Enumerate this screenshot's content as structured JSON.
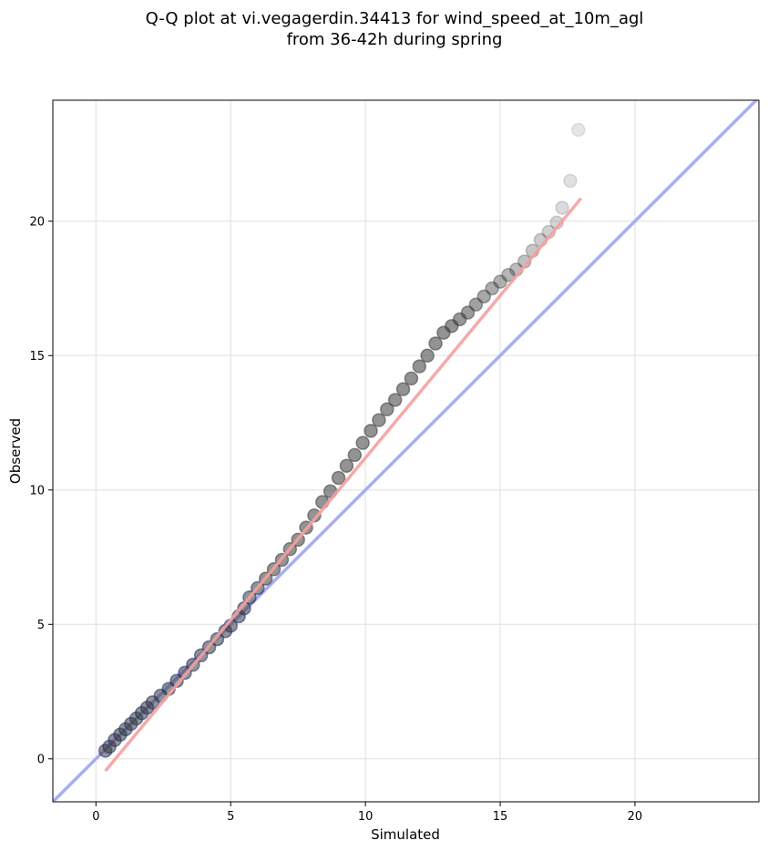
{
  "chart_data": {
    "type": "scatter",
    "title_lines": [
      "Q-Q plot at vi.vegagerdin.34413 for wind_speed_at_10m_agl",
      "from 36-42h during spring"
    ],
    "xlabel": "Simulated",
    "ylabel": "Observed",
    "xlim": [
      -1.6,
      24.6
    ],
    "ylim": [
      -1.6,
      24.5
    ],
    "xticks": [
      0,
      5,
      10,
      15,
      20
    ],
    "yticks": [
      0,
      5,
      10,
      15,
      20
    ],
    "xtick_labels": [
      "0",
      "5",
      "10",
      "15",
      "20"
    ],
    "ytick_labels": [
      "0",
      "5",
      "10",
      "15",
      "20"
    ],
    "grid": true,
    "quantiles": {
      "x": [
        0.35,
        0.5,
        0.7,
        0.9,
        1.1,
        1.3,
        1.5,
        1.7,
        1.9,
        2.1,
        2.4,
        2.7,
        3.0,
        3.3,
        3.6,
        3.9,
        4.2,
        4.5,
        4.8,
        5.0,
        5.3,
        5.5,
        5.7,
        6.0,
        6.3,
        6.6,
        6.9,
        7.2,
        7.5,
        7.8,
        8.1,
        8.4,
        8.7,
        9.0,
        9.3,
        9.6,
        9.9,
        10.2,
        10.5,
        10.8,
        11.1,
        11.4,
        11.7,
        12.0,
        12.3,
        12.6,
        12.9,
        13.2,
        13.5,
        13.8,
        14.1,
        14.4,
        14.7,
        15.0,
        15.3,
        15.6,
        15.9,
        16.2,
        16.5,
        16.8,
        17.1,
        17.3,
        17.6,
        17.9
      ],
      "y": [
        0.3,
        0.45,
        0.7,
        0.9,
        1.1,
        1.3,
        1.5,
        1.7,
        1.9,
        2.1,
        2.35,
        2.6,
        2.9,
        3.2,
        3.5,
        3.85,
        4.15,
        4.45,
        4.75,
        4.95,
        5.3,
        5.6,
        6.0,
        6.35,
        6.7,
        7.05,
        7.4,
        7.8,
        8.15,
        8.6,
        9.05,
        9.55,
        9.95,
        10.45,
        10.9,
        11.3,
        11.75,
        12.2,
        12.6,
        13.0,
        13.35,
        13.75,
        14.15,
        14.6,
        15.0,
        15.45,
        15.85,
        16.1,
        16.35,
        16.6,
        16.9,
        17.2,
        17.5,
        17.75,
        18.0,
        18.2,
        18.5,
        18.9,
        19.3,
        19.6,
        19.95,
        20.5,
        21.5,
        23.4
      ]
    },
    "fit_line": {
      "x": [
        0.35,
        18.0
      ],
      "y": [
        -0.45,
        20.85
      ],
      "color": "#f4a0a0"
    },
    "reference_line": {
      "slope": 1,
      "intercept": 0,
      "color": "#a8adf2"
    },
    "colors": {
      "points": "#3a3a3a",
      "low_points_edge": "#1a2a6e",
      "grid": "#e4e4e4"
    }
  }
}
